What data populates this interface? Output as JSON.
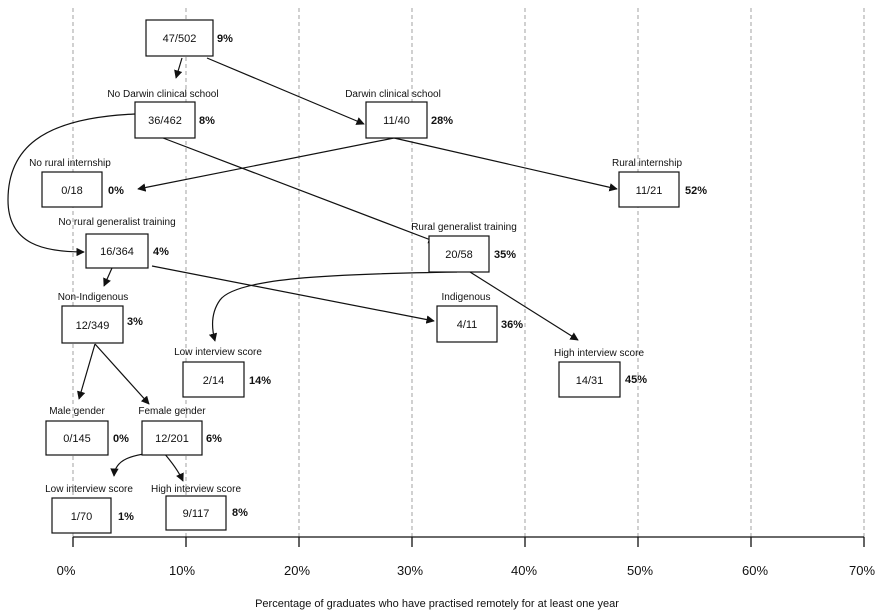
{
  "axis": {
    "title": "Percentage of graduates who have practised remotely for at least one year",
    "ticks": [
      "0%",
      "10%",
      "20%",
      "30%",
      "40%",
      "50%",
      "60%",
      "70%"
    ]
  },
  "nodes": {
    "root": {
      "count": "47/502",
      "pct": "9%"
    },
    "no_darwin": {
      "label": "No Darwin clinical school",
      "count": "36/462",
      "pct": "8%"
    },
    "darwin": {
      "label": "Darwin clinical school",
      "count": "11/40",
      "pct": "28%"
    },
    "no_rural_intern": {
      "label": "No rural internship",
      "count": "0/18",
      "pct": "0%"
    },
    "rural_intern": {
      "label": "Rural internship",
      "count": "11/21",
      "pct": "52%"
    },
    "no_rgt": {
      "label": "No rural generalist training",
      "count": "16/364",
      "pct": "4%"
    },
    "rgt": {
      "label": "Rural generalist training",
      "count": "20/58",
      "pct": "35%"
    },
    "non_indig": {
      "label": "Non-Indigenous",
      "count": "12/349",
      "pct": "3%"
    },
    "indig": {
      "label": "Indigenous",
      "count": "4/11",
      "pct": "36%"
    },
    "low_int_rgt": {
      "label": "Low interview score",
      "count": "2/14",
      "pct": "14%"
    },
    "high_int_rgt": {
      "label": "High interview score",
      "count": "14/31",
      "pct": "45%"
    },
    "male": {
      "label": "Male gender",
      "count": "0/145",
      "pct": "0%"
    },
    "female": {
      "label": "Female gender",
      "count": "12/201",
      "pct": "6%"
    },
    "low_int_f": {
      "label": "Low interview score",
      "count": "1/70",
      "pct": "1%"
    },
    "high_int_f": {
      "label": "High interview score",
      "count": "9/117",
      "pct": "8%"
    }
  }
}
